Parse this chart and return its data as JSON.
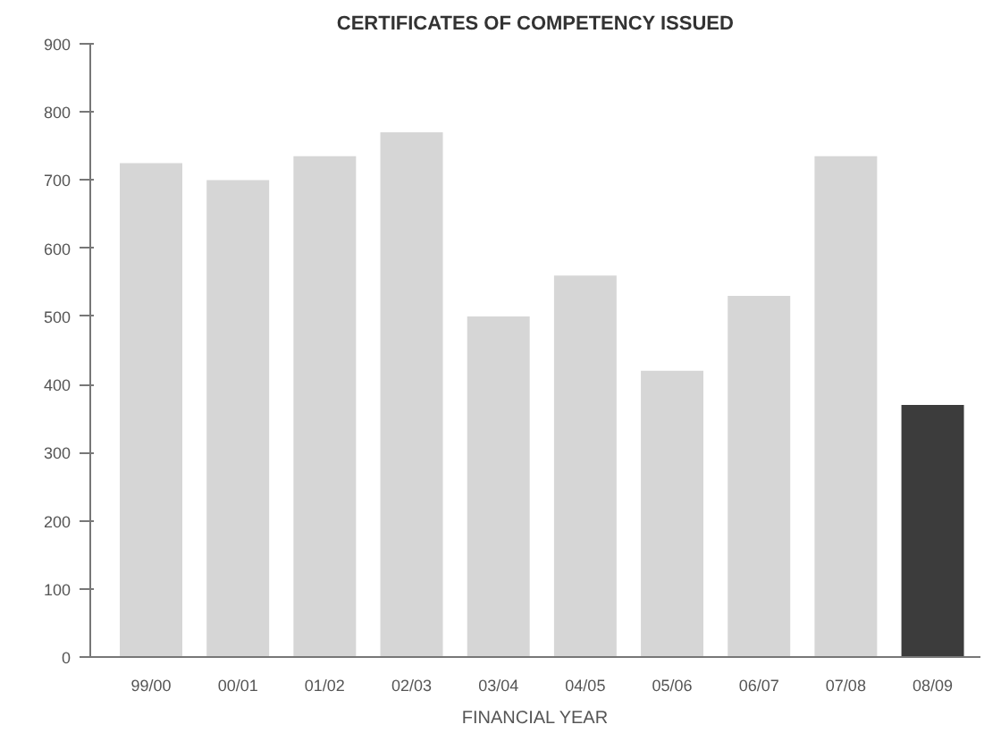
{
  "chart_data": {
    "type": "bar",
    "title": "CERTIFICATES OF COMPETENCY ISSUED",
    "xlabel": "FINANCIAL YEAR",
    "categories": [
      "99/00",
      "00/01",
      "01/02",
      "02/03",
      "03/04",
      "04/05",
      "05/06",
      "06/07",
      "07/08",
      "08/09"
    ],
    "values": [
      725,
      700,
      735,
      770,
      500,
      560,
      420,
      530,
      735,
      370
    ],
    "colors": [
      "#d6d6d6",
      "#d6d6d6",
      "#d6d6d6",
      "#d6d6d6",
      "#d6d6d6",
      "#d6d6d6",
      "#d6d6d6",
      "#d6d6d6",
      "#d6d6d6",
      "#3c3c3c"
    ],
    "ylim": [
      0,
      900
    ],
    "yticks": [
      0,
      100,
      200,
      300,
      400,
      500,
      600,
      700,
      800,
      900
    ],
    "grid": false
  }
}
